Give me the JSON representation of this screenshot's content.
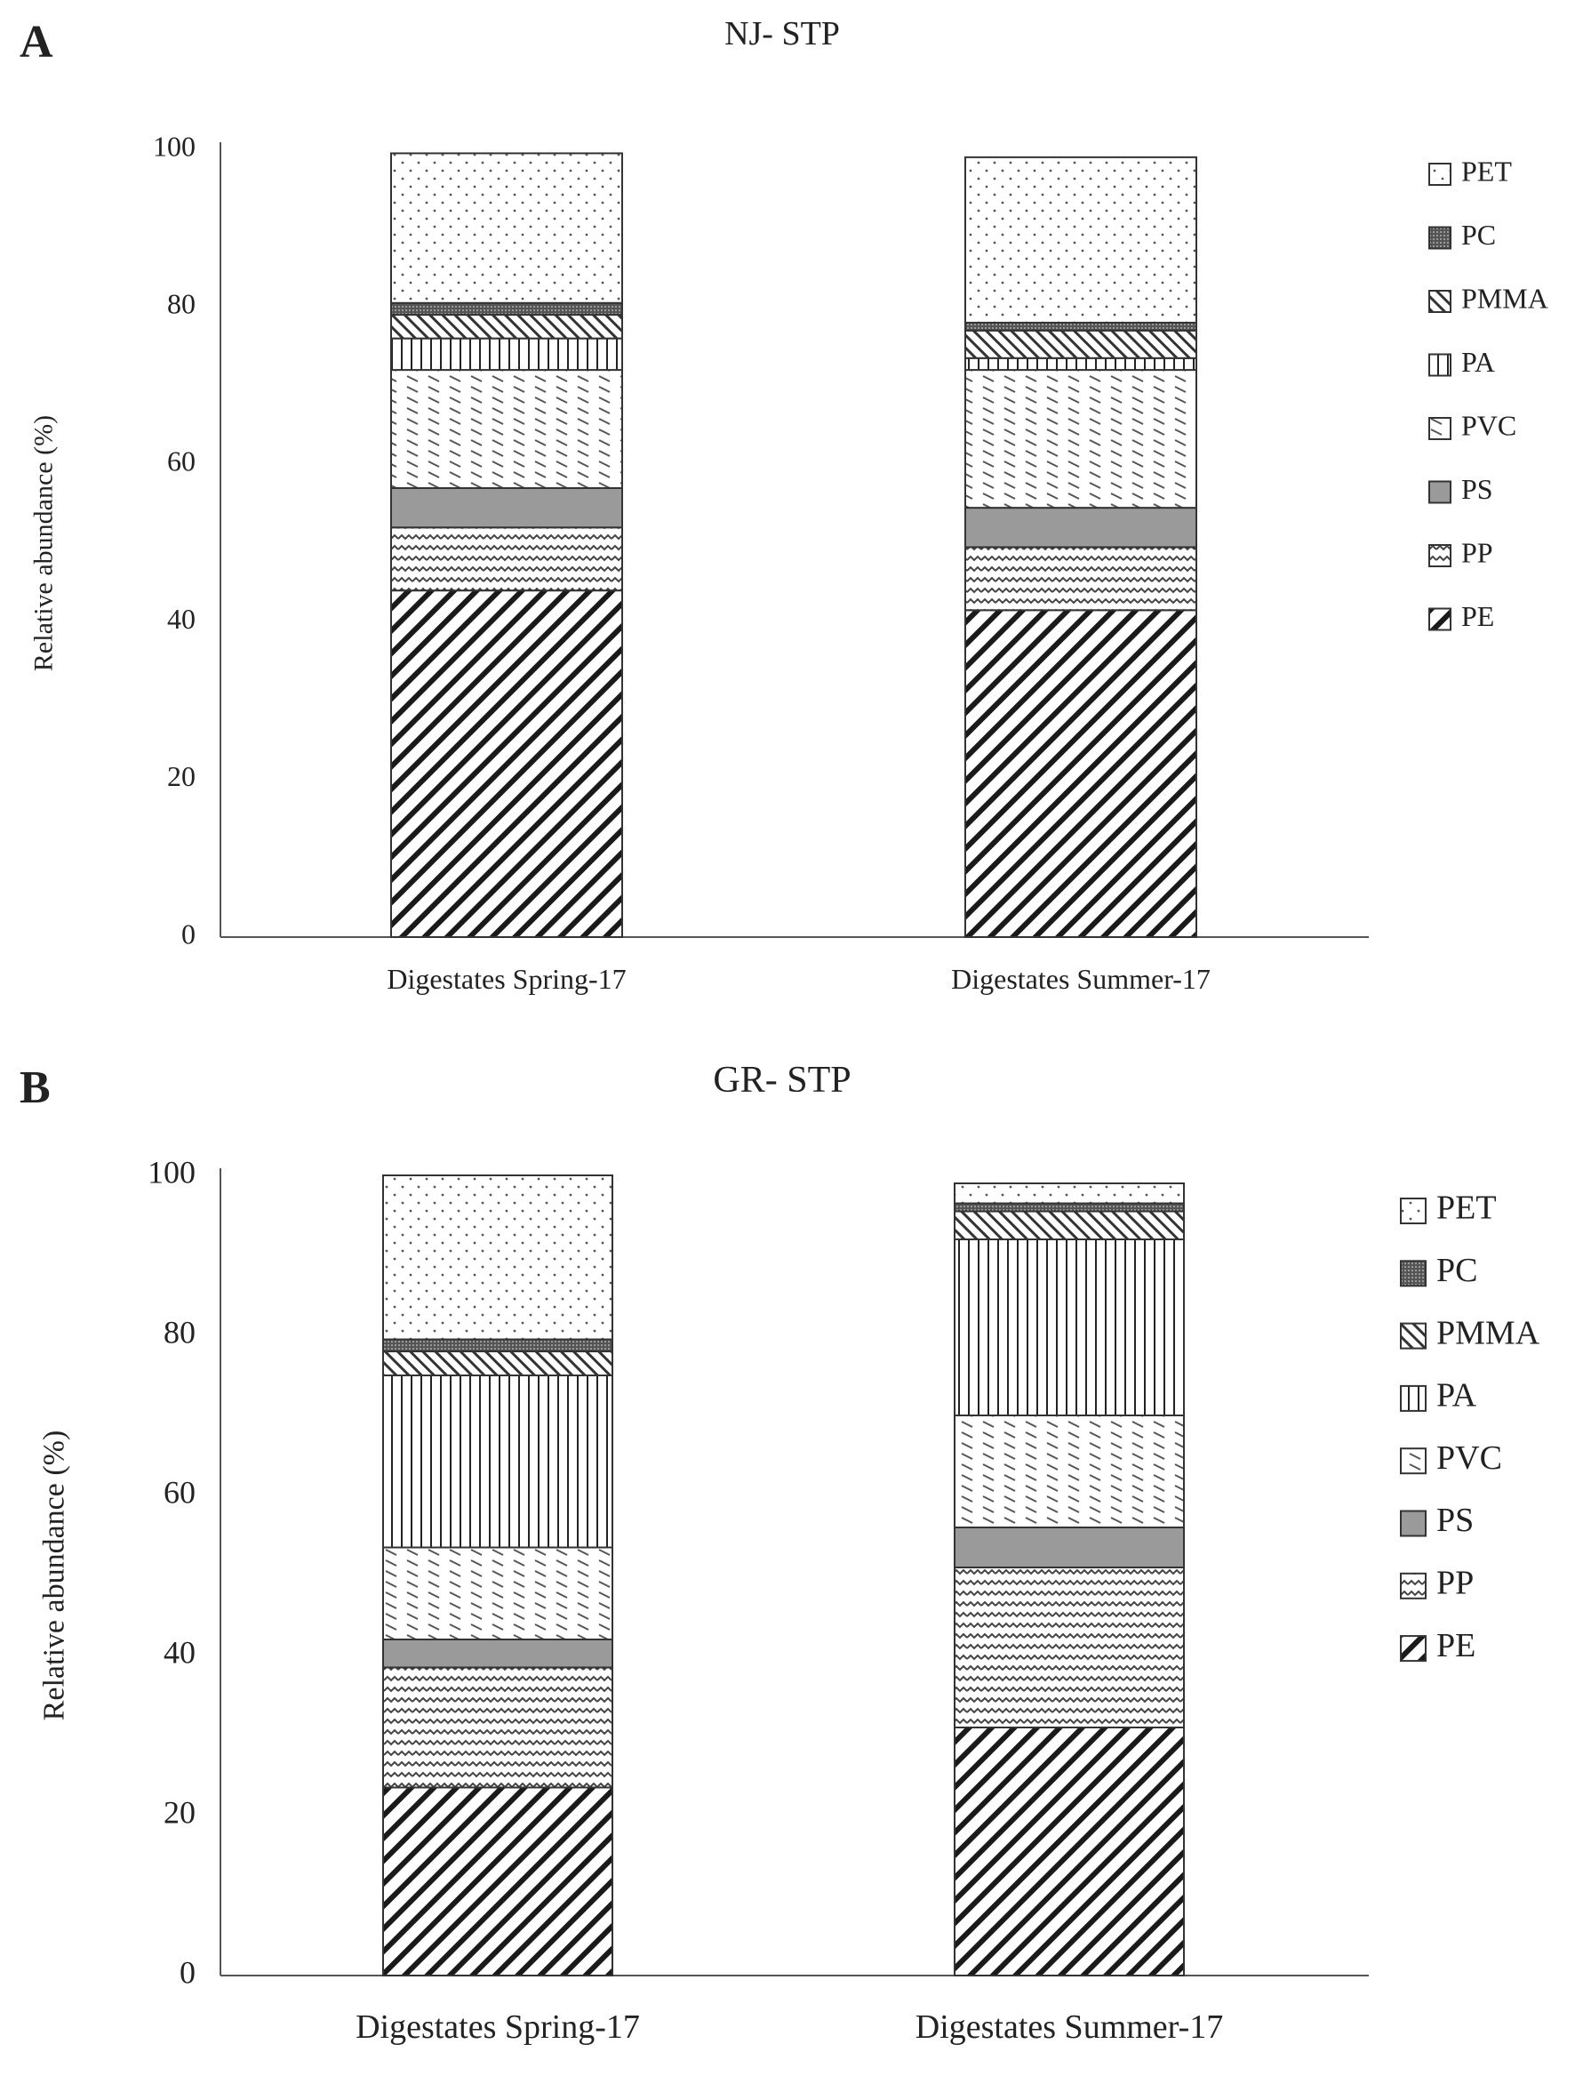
{
  "chart_data": [
    {
      "type": "bar",
      "stacked": true,
      "panel_letter": "A",
      "title": "NJ- STP",
      "xlabel": "",
      "ylabel": "Relative abundance (%)",
      "ylim": [
        0,
        100
      ],
      "yticks": [
        "0",
        "20",
        "40",
        "60",
        "80",
        "100"
      ],
      "categories": [
        "Digestates Spring-17",
        "Digestates Summer-17"
      ],
      "legend_position": "right",
      "legend": [
        "PET",
        "PC",
        "PMMA",
        "PA",
        "PVC",
        "PS",
        "PP",
        "PE"
      ],
      "series": [
        {
          "name": "PE",
          "pattern": "diagonal",
          "values": [
            44,
            41.5
          ]
        },
        {
          "name": "PP",
          "pattern": "wave",
          "values": [
            8,
            8
          ]
        },
        {
          "name": "PS",
          "pattern": "solid-gray",
          "values": [
            5,
            5
          ]
        },
        {
          "name": "PVC",
          "pattern": "dash",
          "values": [
            15,
            17.5
          ]
        },
        {
          "name": "PA",
          "pattern": "vertical",
          "values": [
            4,
            1.5
          ]
        },
        {
          "name": "PMMA",
          "pattern": "backdiag",
          "values": [
            3,
            3.5
          ]
        },
        {
          "name": "PC",
          "pattern": "dark-dots",
          "values": [
            1.5,
            1
          ]
        },
        {
          "name": "PET",
          "pattern": "dots",
          "values": [
            19,
            21
          ]
        }
      ]
    },
    {
      "type": "bar",
      "stacked": true,
      "panel_letter": "B",
      "title": "GR- STP",
      "xlabel": "",
      "ylabel": "Relative abundance (%)",
      "ylim": [
        0,
        100
      ],
      "yticks": [
        "0",
        "20",
        "40",
        "60",
        "80",
        "100"
      ],
      "categories": [
        "Digestates Spring-17",
        "Digestates Summer-17"
      ],
      "legend_position": "right",
      "legend": [
        "PET",
        "PC",
        "PMMA",
        "PA",
        "PVC",
        "PS",
        "PP",
        "PE"
      ],
      "series": [
        {
          "name": "PE",
          "pattern": "diagonal",
          "values": [
            23.5,
            31
          ]
        },
        {
          "name": "PP",
          "pattern": "wave",
          "values": [
            15,
            20
          ]
        },
        {
          "name": "PS",
          "pattern": "solid-gray",
          "values": [
            3.5,
            5
          ]
        },
        {
          "name": "PVC",
          "pattern": "dash",
          "values": [
            11.5,
            14
          ]
        },
        {
          "name": "PA",
          "pattern": "vertical",
          "values": [
            21.5,
            22
          ]
        },
        {
          "name": "PMMA",
          "pattern": "backdiag",
          "values": [
            3,
            3.5
          ]
        },
        {
          "name": "PC",
          "pattern": "dark-dots",
          "values": [
            1.5,
            1
          ]
        },
        {
          "name": "PET",
          "pattern": "dots",
          "values": [
            20.5,
            2.5
          ]
        }
      ]
    }
  ]
}
